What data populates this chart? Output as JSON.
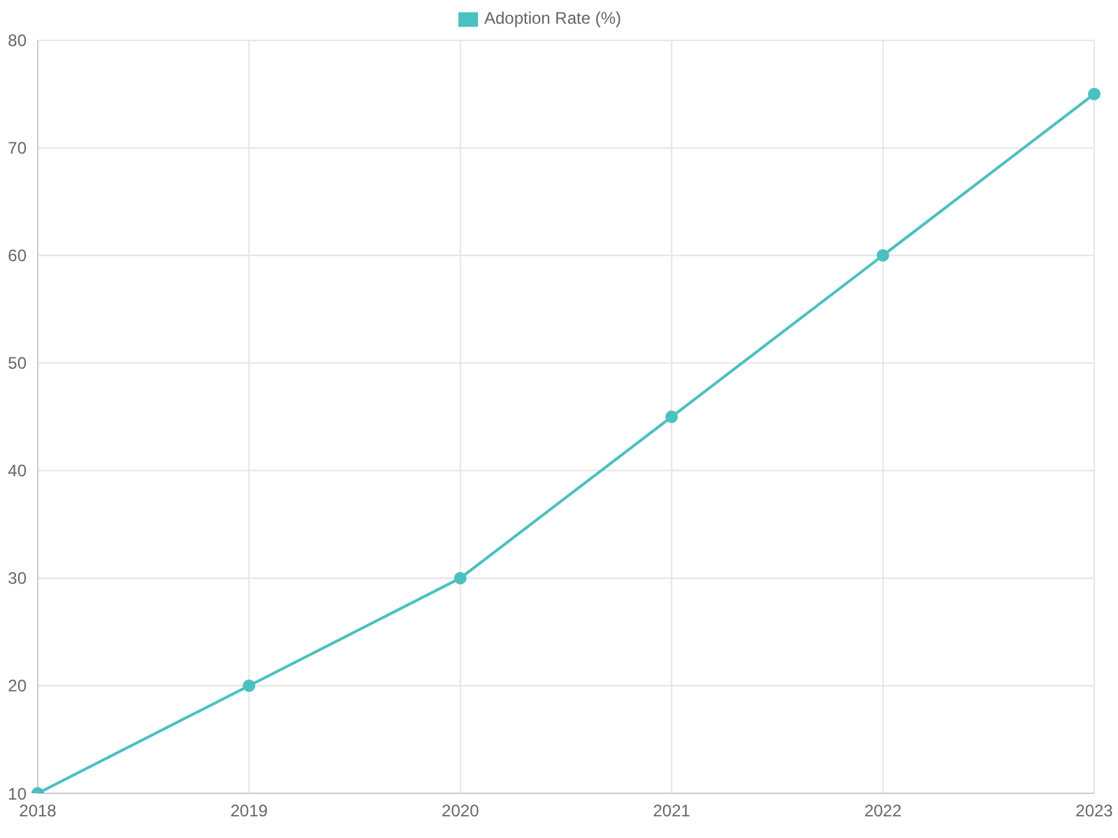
{
  "chart_data": {
    "type": "line",
    "categories": [
      "2018",
      "2019",
      "2020",
      "2021",
      "2022",
      "2023"
    ],
    "series": [
      {
        "name": "Adoption Rate (%)",
        "color": "#4bc0c0",
        "values": [
          10,
          20,
          30,
          45,
          60,
          75
        ]
      }
    ],
    "ylim": [
      10,
      80
    ],
    "yticks": [
      10,
      20,
      30,
      40,
      50,
      60,
      70,
      80
    ],
    "grid": true,
    "legend": "top",
    "marker": "circle",
    "line_style": "solid"
  }
}
